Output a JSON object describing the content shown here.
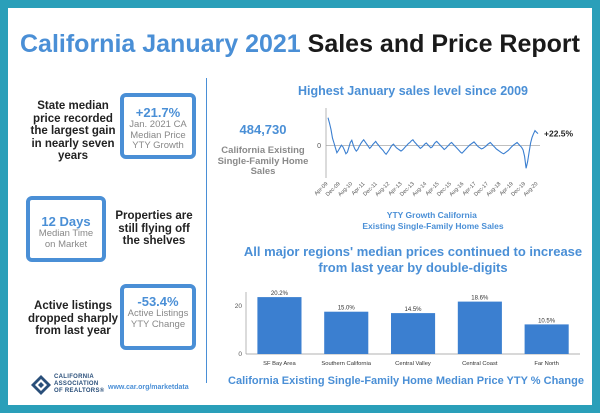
{
  "title": {
    "part1": "California",
    "part2": "January 2021",
    "part3": "Sales and Price Report"
  },
  "stats": [
    {
      "text": "State median price recorded the largest gain in nearly seven years",
      "value": "+21.7%",
      "caption": "Jan. 2021 CA Median Price YTY Growth"
    },
    {
      "text": "Properties are still flying off the shelves",
      "value": "12 Days",
      "caption": "Median Time on Market"
    },
    {
      "text": "Active listings dropped sharply from last year",
      "value": "-53.4%",
      "caption": "Active Listings YTY Change"
    }
  ],
  "headline_top": "Highest January sales level since 2009",
  "headline_bottom": "All major regions' median prices continued to increase from last year by double-digits",
  "sales": {
    "value": "484,730",
    "label": "California Existing Single-Family Home Sales"
  },
  "footer": {
    "org": "CALIFORNIA ASSOCIATION OF REALTORS®",
    "url": "www.car.org/marketdata"
  },
  "chart_data": [
    {
      "type": "line",
      "title": "YTY Growth California Existing Single-Family Home Sales",
      "x_ticks": [
        "Apr-09",
        "Dec-09",
        "Aug-10",
        "Apr-11",
        "Dec-11",
        "Aug-12",
        "Apr-13",
        "Dec-13",
        "Aug-14",
        "Apr-15",
        "Dec-15",
        "Aug-16",
        "Apr-17",
        "Dec-17",
        "Aug-18",
        "Apr-19",
        "Dec-19",
        "Aug-20"
      ],
      "y_ticks": [
        "0"
      ],
      "ylim": [
        -60,
        70
      ],
      "end_label": "+22.5%",
      "values": [
        52,
        42,
        30,
        14,
        5,
        -4,
        -13,
        -9,
        -4,
        1,
        -2,
        -8,
        -15,
        -12,
        -3,
        6,
        10,
        1,
        -6,
        -10,
        -7,
        -1,
        4,
        8,
        11,
        7,
        3,
        -1,
        -5,
        -2,
        2,
        5,
        8,
        4,
        1,
        -3,
        -6,
        -9,
        -13,
        -16,
        -12,
        -8,
        -3,
        1,
        3,
        -1,
        -4,
        -6,
        -8,
        -10,
        -8,
        -5,
        -2,
        1,
        4,
        6,
        9,
        11,
        7,
        4,
        1,
        -2,
        -5,
        -3,
        0,
        3,
        5,
        2,
        -1,
        -4,
        -2,
        2,
        6,
        8,
        5,
        2,
        -1,
        -4,
        -7,
        -5,
        -2,
        1,
        4,
        6,
        3,
        0,
        -3,
        -6,
        -9,
        -12,
        -14,
        -11,
        -8,
        -5,
        -2,
        1,
        3,
        5,
        7,
        4,
        1,
        -2,
        -4,
        -6,
        -5,
        -3,
        -1,
        2,
        4,
        6,
        3,
        0,
        -3,
        -6,
        -8,
        -10,
        -12,
        -14,
        -15,
        -13,
        -11,
        -9,
        -6,
        -3,
        0,
        2,
        4,
        6,
        3,
        0,
        -3,
        -8,
        -20,
        -42,
        -30,
        -12,
        5,
        15,
        22,
        28,
        25,
        22.5
      ]
    },
    {
      "type": "bar",
      "title": "California Existing Single-Family Home Median Price YTY % Change",
      "categories": [
        "SF Bay Area",
        "Southern California",
        "Central Valley",
        "Central Coast",
        "Far North"
      ],
      "values": [
        20.2,
        15.0,
        14.5,
        18.6,
        10.5
      ],
      "labels": [
        "20.2%",
        "15.0%",
        "14.5%",
        "18.6%",
        "10.5%"
      ],
      "y_ticks": [
        "0",
        "20"
      ],
      "ylim": [
        0,
        22
      ]
    }
  ]
}
